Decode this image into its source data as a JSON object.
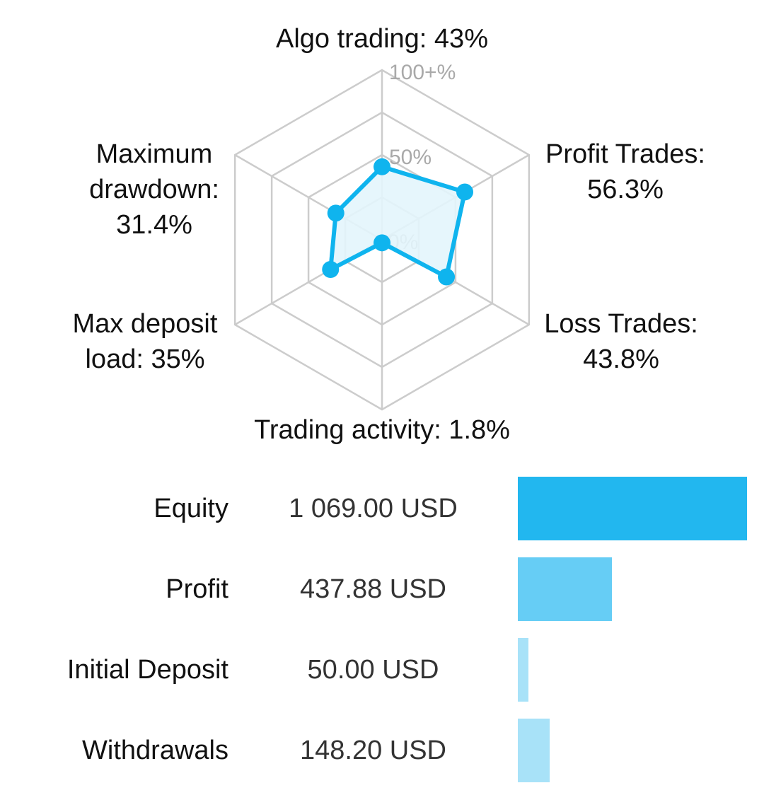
{
  "chart_data": [
    {
      "type": "radar",
      "ticks": [
        "0%",
        "50%",
        "100+%"
      ],
      "axes": [
        {
          "name": "Algo trading",
          "label_lines": [
            "Algo trading: 43%"
          ],
          "value": 43
        },
        {
          "name": "Profit Trades",
          "label_lines": [
            "Profit Trades:",
            "56.3%"
          ],
          "value": 56.3
        },
        {
          "name": "Loss Trades",
          "label_lines": [
            "Loss Trades:",
            "43.8%"
          ],
          "value": 43.8
        },
        {
          "name": "Trading activity",
          "label_lines": [
            "Trading activity: 1.8%"
          ],
          "value": 1.8
        },
        {
          "name": "Max deposit load",
          "label_lines": [
            "Max deposit",
            "load: 35%"
          ],
          "value": 35
        },
        {
          "name": "Maximum drawdown",
          "label_lines": [
            "Maximum",
            "drawdown:",
            "31.4%"
          ],
          "value": 31.4
        }
      ],
      "colors": {
        "series": "#0fb4ee",
        "fill": "#e3f5fc",
        "grid": "#cccccc"
      }
    },
    {
      "type": "bar",
      "orientation": "horizontal",
      "categories": [
        "Equity",
        "Profit",
        "Initial Deposit",
        "Withdrawals"
      ],
      "display_values": [
        "1 069.00 USD",
        "437.88 USD",
        "50.00 USD",
        "148.20 USD"
      ],
      "values": [
        1069.0,
        437.88,
        50.0,
        148.2
      ],
      "xlim": [
        0,
        1069.0
      ],
      "colors": [
        "#22b7ef",
        "#66cdf5",
        "#a8e2f8",
        "#a8e2f8"
      ]
    }
  ]
}
